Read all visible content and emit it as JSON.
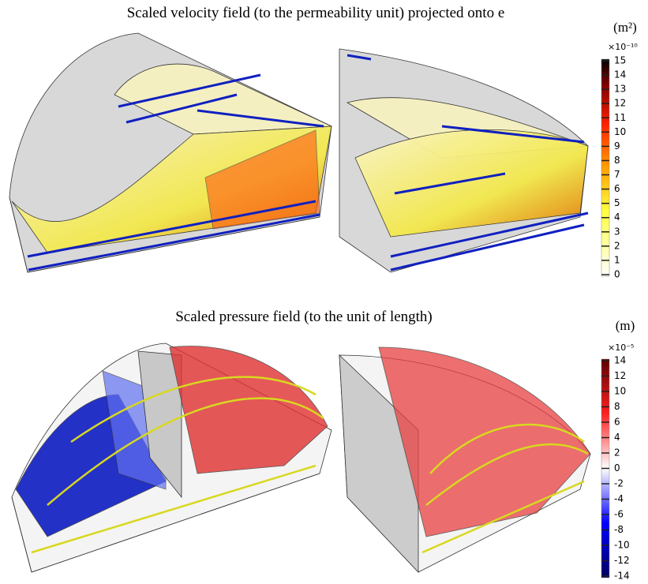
{
  "panels": [
    {
      "title": "Scaled velocity field (to the permeability unit) projected onto e",
      "unit": "(m²)",
      "exponent": "×10⁻¹⁰",
      "ticks": [
        15,
        14,
        13,
        12,
        11,
        10,
        9,
        8,
        7,
        6,
        5,
        4,
        3,
        2,
        1,
        0
      ]
    },
    {
      "title": "Scaled pressure field (to the unit of length)",
      "unit": "(m)",
      "exponent": "×10⁻⁵",
      "ticks": [
        14,
        12,
        10,
        8,
        6,
        4,
        2,
        0,
        -2,
        -4,
        -6,
        -8,
        -10,
        -12,
        -14
      ]
    }
  ]
}
